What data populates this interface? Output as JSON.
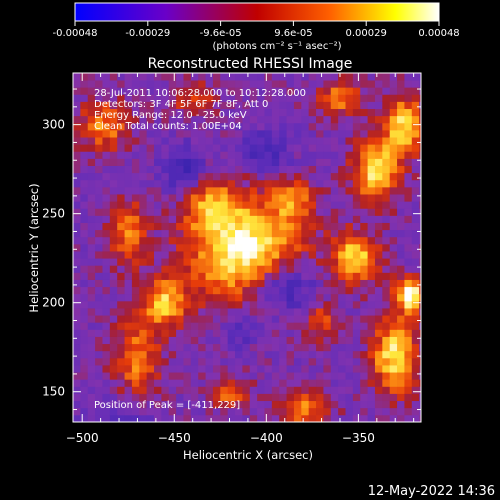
{
  "colorbar": {
    "ticks": [
      "-0.00048",
      "-0.00029",
      "-9.6e-05",
      "9.6e-05",
      "0.00029",
      "0.00048"
    ],
    "unit_label": "(photons cm⁻² s⁻¹ asec⁻²)",
    "range": [
      -0.00048,
      0.00048
    ],
    "colors": [
      "#0000ff",
      "#6a00c8",
      "#c00000",
      "#ff6000",
      "#ffff00",
      "#ffffff"
    ]
  },
  "chart_data": {
    "type": "heatmap",
    "title": "Reconstructed RHESSI Image",
    "xlabel": "Heliocentric X (arcsec)",
    "ylabel": "Heliocentric Y (arcsec)",
    "xlim": [
      -505,
      -316
    ],
    "ylim": [
      133,
      329
    ],
    "x_ticks": [
      -500,
      -450,
      -400,
      -350
    ],
    "x_tick_labels": [
      "−500",
      "−450",
      "−400",
      "−350"
    ],
    "y_ticks": [
      150,
      200,
      250,
      300
    ],
    "y_tick_labels": [
      "150",
      "200",
      "250",
      "300"
    ],
    "annotations": [
      "28-Jul-2011 10:06:28.000 to 10:12:28.000",
      "Detectors: 3F 4F 5F 6F 7F 8F, Att 0",
      "Energy Range: 12.0 - 25.0 keV",
      "Clean     Total counts: 1.00E+04"
    ],
    "peak_label": "Position of Peak = [-411,229]",
    "peak": [
      -411,
      229
    ]
  },
  "footer": {
    "timestamp": "12-May-2022 14:36"
  }
}
